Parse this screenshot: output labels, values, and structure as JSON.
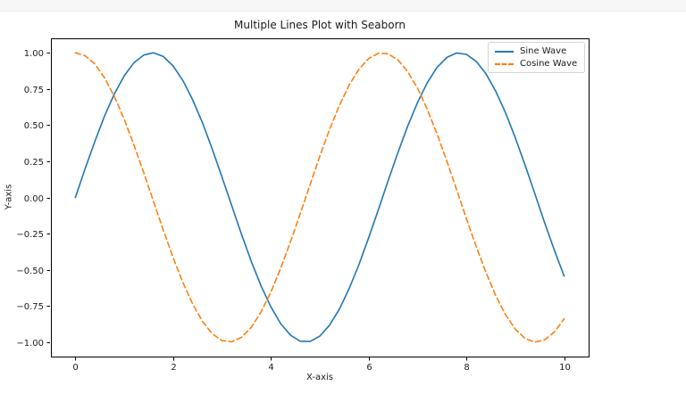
{
  "window": {
    "background": "#ffffff",
    "top_band_color": "#f7f7f7"
  },
  "chart_data": {
    "type": "line",
    "title": "Multiple Lines Plot with Seaborn",
    "xlabel": "X-axis",
    "ylabel": "Y-axis",
    "xlim": [
      -0.5,
      10.5
    ],
    "ylim": [
      -1.1,
      1.1
    ],
    "grid": false,
    "legend_position": "upper right",
    "axis_color": "#000000",
    "text_color": "#1a1a1a",
    "xticks": [
      0,
      2,
      4,
      6,
      8,
      10
    ],
    "xtick_labels": [
      "0",
      "2",
      "4",
      "6",
      "8",
      "10"
    ],
    "yticks": [
      -1,
      -0.75,
      -0.5,
      -0.25,
      0,
      0.25,
      0.5,
      0.75,
      1
    ],
    "ytick_labels": [
      "−1.00",
      "−0.75",
      "−0.50",
      "−0.25",
      "0.00",
      "0.25",
      "0.50",
      "0.75",
      "1.00"
    ],
    "x": [
      0,
      0.2,
      0.4,
      0.6,
      0.8,
      1,
      1.2,
      1.4,
      1.6,
      1.8,
      2,
      2.2,
      2.4,
      2.6,
      2.8,
      3,
      3.2,
      3.4,
      3.6,
      3.8,
      4,
      4.2,
      4.4,
      4.6,
      4.8,
      5,
      5.2,
      5.4,
      5.6,
      5.8,
      6,
      6.2,
      6.4,
      6.6,
      6.8,
      7,
      7.2,
      7.4,
      7.6,
      7.8,
      8,
      8.2,
      8.4,
      8.6,
      8.8,
      9,
      9.2,
      9.4,
      9.6,
      9.8,
      10
    ],
    "series": [
      {
        "name": "Sine Wave",
        "color": "#1f77b4",
        "style": "solid",
        "values": [
          0,
          0.199,
          0.389,
          0.565,
          0.717,
          0.841,
          0.932,
          0.985,
          1.0,
          0.974,
          0.909,
          0.808,
          0.675,
          0.516,
          0.335,
          0.141,
          -0.058,
          -0.256,
          -0.443,
          -0.612,
          -0.757,
          -0.872,
          -0.952,
          -0.994,
          -0.996,
          -0.959,
          -0.883,
          -0.773,
          -0.631,
          -0.465,
          -0.279,
          -0.083,
          0.117,
          0.312,
          0.494,
          0.657,
          0.794,
          0.899,
          0.968,
          0.999,
          0.989,
          0.941,
          0.855,
          0.734,
          0.585,
          0.412,
          0.223,
          0.025,
          -0.174,
          -0.366,
          -0.544
        ]
      },
      {
        "name": "Cosine Wave",
        "color": "#ff7f0e",
        "style": "dashed",
        "values": [
          1.0,
          0.98,
          0.921,
          0.825,
          0.697,
          0.54,
          0.362,
          0.17,
          -0.029,
          -0.227,
          -0.416,
          -0.589,
          -0.737,
          -0.857,
          -0.942,
          -0.99,
          -0.998,
          -0.967,
          -0.897,
          -0.791,
          -0.654,
          -0.49,
          -0.307,
          -0.112,
          0.087,
          0.284,
          0.469,
          0.635,
          0.776,
          0.886,
          0.96,
          0.997,
          0.993,
          0.95,
          0.869,
          0.754,
          0.608,
          0.439,
          0.251,
          0.054,
          -0.146,
          -0.339,
          -0.519,
          -0.679,
          -0.811,
          -0.911,
          -0.975,
          -1.0,
          -0.985,
          -0.93,
          -0.839
        ]
      }
    ]
  }
}
